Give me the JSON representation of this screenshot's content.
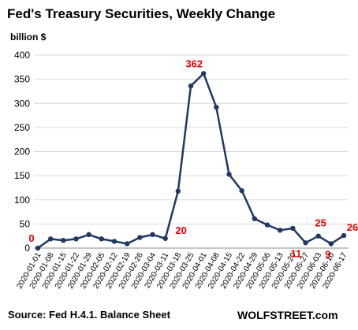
{
  "chart_data": {
    "type": "line",
    "title": "Fed's Treasury Securities, Weekly Change",
    "ylabel": "billion $",
    "xlabel": "",
    "ylim": [
      0,
      400
    ],
    "yticks": [
      0,
      50,
      100,
      150,
      200,
      250,
      300,
      350,
      400
    ],
    "grid": "horizontal",
    "legend": "none",
    "line_color": "#1f3864",
    "label_color": "#e60000",
    "x": [
      "2020-01-01",
      "2020-01-08",
      "2020-01-15",
      "2020-01-22",
      "2020-01-29",
      "2020-02-05",
      "2020-02-12",
      "2020-02-19",
      "2020-02-26",
      "2020-03-04",
      "2020-03-11",
      "2020-03-18",
      "2020-03-25",
      "2020-04-01",
      "2020-04-08",
      "2020-04-15",
      "2020-04-22",
      "2020-04-29",
      "2020-05-06",
      "2020-05-13",
      "2020-05-20",
      "2020-05-27",
      "2020-06-03",
      "2020-06-10",
      "2020-06-17"
    ],
    "series": [
      {
        "values": [
          0,
          19,
          16,
          19,
          28,
          19,
          14,
          9,
          22,
          28,
          20,
          118,
          336,
          362,
          292,
          153,
          119,
          61,
          48,
          37,
          41,
          11,
          25,
          9,
          26
        ]
      }
    ],
    "data_labels": [
      {
        "index": 0,
        "text": "0"
      },
      {
        "index": 10,
        "text": "20"
      },
      {
        "index": 13,
        "text": "362"
      },
      {
        "index": 21,
        "text": "11"
      },
      {
        "index": 22,
        "text": "25"
      },
      {
        "index": 23,
        "text": "9"
      },
      {
        "index": 24,
        "text": "26"
      }
    ]
  },
  "footer": {
    "source": "Source: Fed H.4.1. Balance Sheet",
    "brand": "WOLFSTREET.com"
  }
}
